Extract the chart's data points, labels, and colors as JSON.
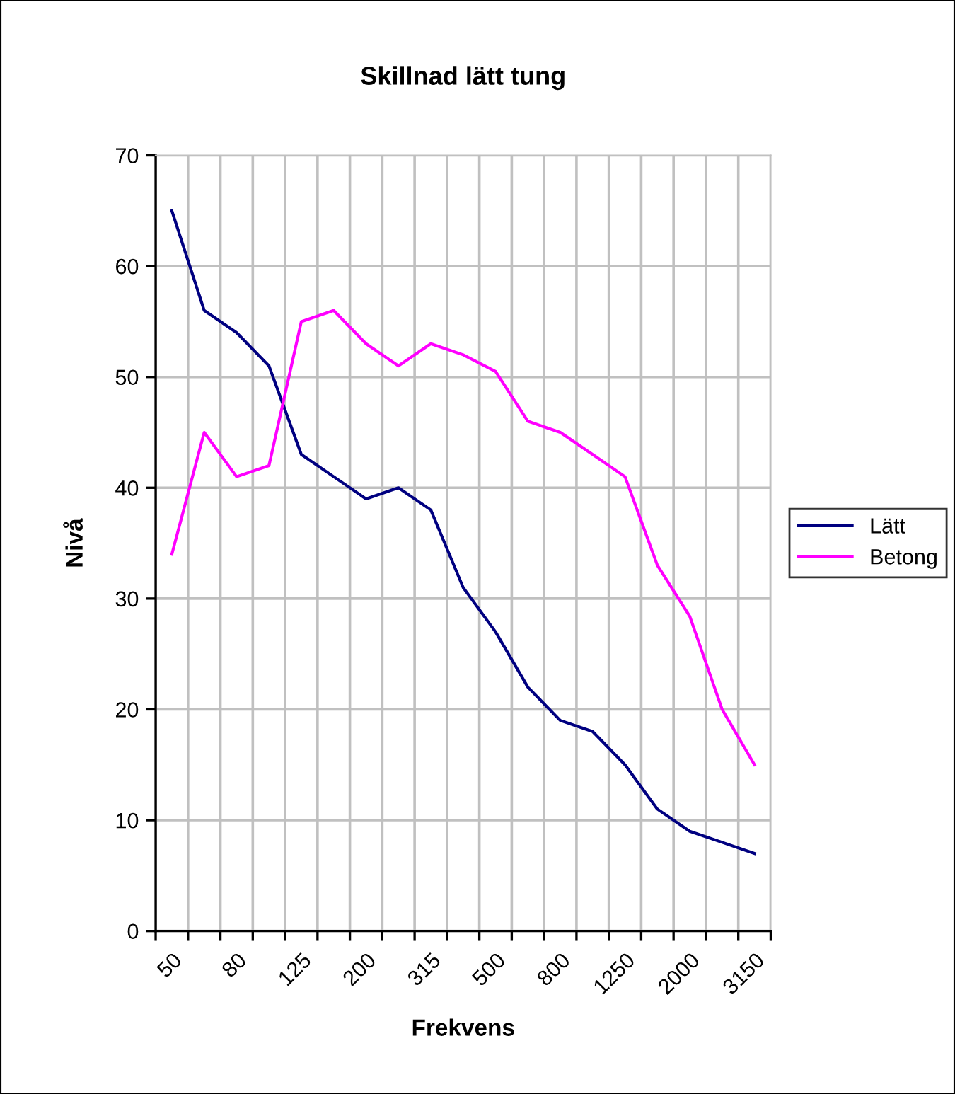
{
  "chart_data": {
    "type": "line",
    "title": "Skillnad lätt tung",
    "xlabel": "Frekvens",
    "ylabel": "Nivå",
    "categories": [
      "50",
      null,
      "80",
      null,
      "125",
      null,
      "200",
      null,
      "315",
      null,
      "500",
      null,
      "800",
      null,
      "1250",
      null,
      "2000",
      null,
      "3150"
    ],
    "series": [
      {
        "name": "Lätt",
        "color": "#000080",
        "values": [
          65,
          56,
          54,
          51,
          43,
          41,
          39,
          40,
          38,
          31,
          27,
          22,
          19,
          18,
          15,
          11,
          9,
          8,
          7
        ]
      },
      {
        "name": "Betong",
        "color": "#ff00ff",
        "values": [
          34,
          45,
          41,
          42,
          55,
          56,
          53,
          51,
          53,
          52,
          50.5,
          46,
          45,
          43,
          41,
          33,
          28.4,
          20,
          15
        ]
      }
    ],
    "ylim": [
      0,
      70
    ],
    "yticks": [
      0,
      10,
      20,
      30,
      40,
      50,
      60,
      70
    ],
    "grid": true,
    "legend": "right",
    "marker": "none",
    "line_style": "solid"
  }
}
